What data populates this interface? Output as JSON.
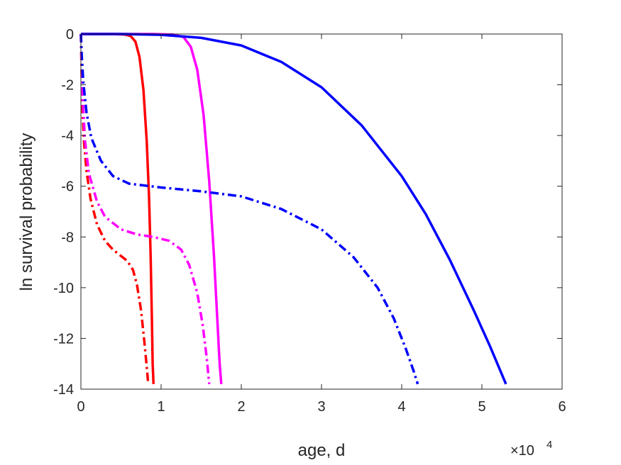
{
  "chart_data": {
    "type": "line",
    "title": "",
    "xlabel": "age, d",
    "ylabel": "ln survival probability",
    "x_exponent_label": "×10",
    "x_exponent_power": "4",
    "xlim": [
      0,
      60000
    ],
    "ylim": [
      -14,
      0
    ],
    "x_ticks": [
      0,
      10000,
      20000,
      30000,
      40000,
      50000,
      60000
    ],
    "x_tick_labels": [
      "0",
      "1",
      "2",
      "3",
      "4",
      "5",
      "6"
    ],
    "y_ticks": [
      0,
      -2,
      -4,
      -6,
      -8,
      -10,
      -12,
      -14
    ],
    "y_tick_labels": [
      "0",
      "-2",
      "-4",
      "-6",
      "-8",
      "-10",
      "-12",
      "-14"
    ],
    "grid": false,
    "legend": "none",
    "series": [
      {
        "color": "#ff0000",
        "dash": "solid",
        "points": [
          [
            0,
            0
          ],
          [
            2000,
            0
          ],
          [
            4000,
            0
          ],
          [
            5500,
            -0.02
          ],
          [
            6200,
            -0.08
          ],
          [
            6800,
            -0.3
          ],
          [
            7300,
            -0.9
          ],
          [
            7800,
            -2.2
          ],
          [
            8200,
            -4.2
          ],
          [
            8500,
            -6.5
          ],
          [
            8700,
            -8.8
          ],
          [
            8850,
            -11.2
          ],
          [
            8950,
            -13.0
          ],
          [
            9050,
            -13.8
          ]
        ]
      },
      {
        "color": "#ff00ff",
        "dash": "solid",
        "points": [
          [
            0,
            0
          ],
          [
            5000,
            0
          ],
          [
            9000,
            0
          ],
          [
            11500,
            -0.02
          ],
          [
            12800,
            -0.12
          ],
          [
            13700,
            -0.5
          ],
          [
            14500,
            -1.4
          ],
          [
            15300,
            -3.2
          ],
          [
            16000,
            -5.8
          ],
          [
            16600,
            -8.8
          ],
          [
            17000,
            -11.2
          ],
          [
            17300,
            -13.0
          ],
          [
            17500,
            -13.8
          ]
        ]
      },
      {
        "color": "#0000ff",
        "dash": "solid",
        "points": [
          [
            0,
            0
          ],
          [
            5000,
            0
          ],
          [
            10000,
            -0.03
          ],
          [
            15000,
            -0.15
          ],
          [
            20000,
            -0.45
          ],
          [
            25000,
            -1.1
          ],
          [
            30000,
            -2.1
          ],
          [
            35000,
            -3.6
          ],
          [
            40000,
            -5.6
          ],
          [
            43000,
            -7.1
          ],
          [
            46000,
            -8.9
          ],
          [
            49000,
            -10.9
          ],
          [
            51000,
            -12.3
          ],
          [
            53000,
            -13.8
          ]
        ]
      },
      {
        "color": "#ff0000",
        "dash": "dashdot",
        "points": [
          [
            0,
            0
          ],
          [
            80,
            -1.5
          ],
          [
            200,
            -3.0
          ],
          [
            400,
            -4.3
          ],
          [
            700,
            -5.4
          ],
          [
            1200,
            -6.5
          ],
          [
            2000,
            -7.5
          ],
          [
            3000,
            -8.15
          ],
          [
            4000,
            -8.5
          ],
          [
            5000,
            -8.75
          ],
          [
            5800,
            -8.95
          ],
          [
            6500,
            -9.3
          ],
          [
            7000,
            -9.9
          ],
          [
            7500,
            -10.9
          ],
          [
            7900,
            -12.1
          ],
          [
            8200,
            -13.1
          ],
          [
            8400,
            -13.8
          ]
        ]
      },
      {
        "color": "#ff00ff",
        "dash": "dashdot",
        "points": [
          [
            0,
            0
          ],
          [
            80,
            -1.0
          ],
          [
            200,
            -2.4
          ],
          [
            500,
            -4.2
          ],
          [
            1000,
            -5.5
          ],
          [
            2000,
            -6.6
          ],
          [
            3000,
            -7.2
          ],
          [
            5000,
            -7.7
          ],
          [
            7000,
            -7.9
          ],
          [
            9000,
            -8.0
          ],
          [
            11000,
            -8.15
          ],
          [
            12500,
            -8.5
          ],
          [
            13500,
            -9.1
          ],
          [
            14500,
            -10.2
          ],
          [
            15200,
            -11.5
          ],
          [
            15700,
            -12.8
          ],
          [
            16000,
            -13.8
          ]
        ]
      },
      {
        "color": "#0000ff",
        "dash": "dashdot",
        "points": [
          [
            0,
            0
          ],
          [
            100,
            -0.8
          ],
          [
            300,
            -1.9
          ],
          [
            700,
            -3.1
          ],
          [
            1300,
            -4.1
          ],
          [
            2500,
            -5.0
          ],
          [
            4000,
            -5.6
          ],
          [
            6000,
            -5.9
          ],
          [
            10000,
            -6.05
          ],
          [
            15000,
            -6.2
          ],
          [
            20000,
            -6.4
          ],
          [
            25000,
            -6.9
          ],
          [
            30000,
            -7.7
          ],
          [
            34000,
            -8.8
          ],
          [
            37000,
            -10.0
          ],
          [
            39000,
            -11.2
          ],
          [
            40500,
            -12.4
          ],
          [
            41500,
            -13.3
          ],
          [
            42000,
            -13.8
          ]
        ]
      }
    ]
  }
}
